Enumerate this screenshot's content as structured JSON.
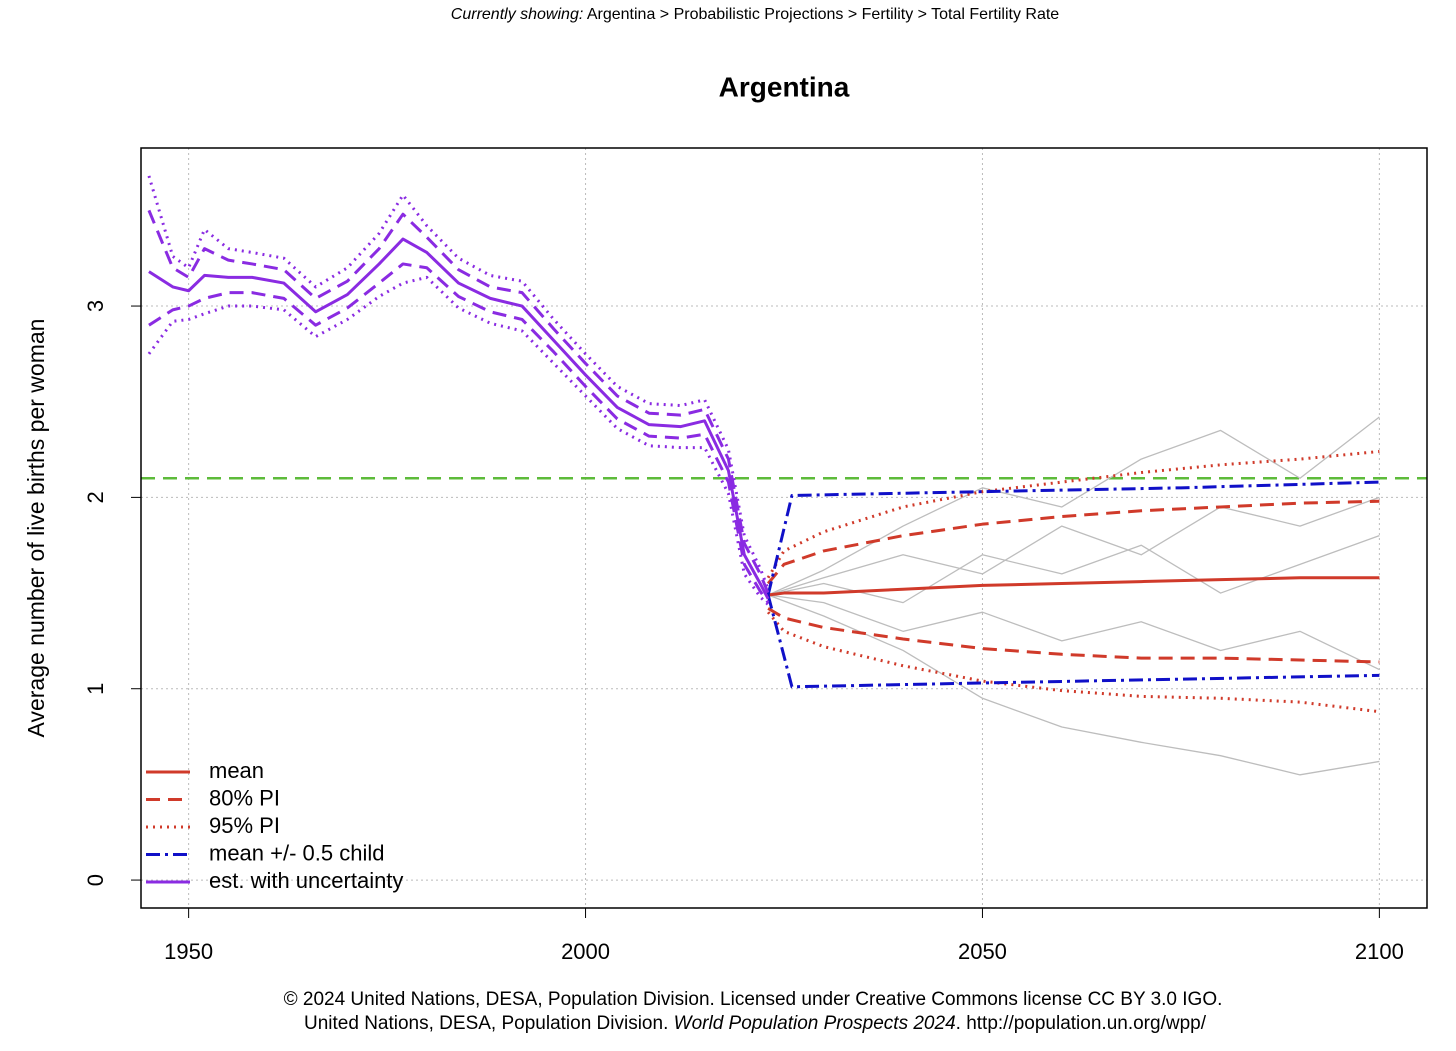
{
  "header": {
    "label": "Currently showing:",
    "path": "Argentina > Probabilistic Projections > Fertility > Total Fertility Rate"
  },
  "chart_data": {
    "type": "line",
    "title": "Argentina",
    "y_label": "Average number of live births per woman",
    "xlim": [
      1944,
      2106
    ],
    "ylim": [
      -0.146,
      3.826
    ],
    "xticks": [
      1950,
      2000,
      2050,
      2100
    ],
    "yticks": [
      0,
      1,
      2,
      3
    ],
    "grid": true,
    "legend": "bottomleft",
    "reference_line": {
      "value": 2.1,
      "color": "#5dbb3a",
      "dash": "dashed"
    },
    "series": [
      {
        "name": "mean",
        "color": "#d03a2a",
        "dash": "solid",
        "x": [
          2023,
          2025,
          2030,
          2040,
          2050,
          2060,
          2070,
          2080,
          2090,
          2100
        ],
        "values": [
          1.49,
          1.5,
          1.5,
          1.52,
          1.54,
          1.55,
          1.56,
          1.57,
          1.58,
          1.58
        ]
      },
      {
        "name": "80% PI",
        "color": "#d03a2a",
        "dash": "dashed",
        "x": [
          2023,
          2025,
          2030,
          2040,
          2050,
          2060,
          2070,
          2080,
          2090,
          2100
        ],
        "values": [
          1.55,
          1.65,
          1.72,
          1.8,
          1.86,
          1.9,
          1.93,
          1.95,
          1.97,
          1.98
        ]
      },
      {
        "color": "#d03a2a",
        "dash": "dashed",
        "x": [
          2023,
          2025,
          2030,
          2040,
          2050,
          2060,
          2070,
          2080,
          2090,
          2100
        ],
        "values": [
          1.42,
          1.37,
          1.32,
          1.26,
          1.21,
          1.18,
          1.16,
          1.16,
          1.15,
          1.14
        ]
      },
      {
        "name": "95% PI",
        "color": "#d03a2a",
        "dash": "dotted",
        "x": [
          2023,
          2025,
          2030,
          2040,
          2050,
          2060,
          2070,
          2080,
          2090,
          2100
        ],
        "values": [
          1.58,
          1.72,
          1.82,
          1.95,
          2.03,
          2.08,
          2.13,
          2.17,
          2.2,
          2.24
        ]
      },
      {
        "color": "#d03a2a",
        "dash": "dotted",
        "x": [
          2023,
          2025,
          2030,
          2040,
          2050,
          2060,
          2070,
          2080,
          2090,
          2100
        ],
        "values": [
          1.4,
          1.3,
          1.22,
          1.12,
          1.04,
          0.99,
          0.96,
          0.95,
          0.93,
          0.88
        ]
      },
      {
        "name": "mean +/- 0.5 child",
        "color": "#1010c8",
        "dash": "dotdash",
        "x": [
          2023,
          2026,
          2050,
          2075,
          2100
        ],
        "values": [
          1.49,
          2.01,
          2.03,
          2.05,
          2.08
        ]
      },
      {
        "color": "#1010c8",
        "dash": "dotdash",
        "x": [
          2023,
          2026,
          2050,
          2075,
          2100
        ],
        "values": [
          1.49,
          1.01,
          1.03,
          1.05,
          1.07
        ]
      },
      {
        "name": "est. with uncertainty",
        "color": "#8a2be2",
        "dash": "solid",
        "x": [
          1945,
          1948,
          1950,
          1952,
          1955,
          1958,
          1962,
          1966,
          1970,
          1974,
          1977,
          1980,
          1984,
          1988,
          1992,
          1996,
          2000,
          2004,
          2008,
          2012,
          2015,
          2018,
          2020,
          2022,
          2023
        ],
        "values": [
          3.18,
          3.1,
          3.08,
          3.16,
          3.15,
          3.15,
          3.12,
          2.97,
          3.06,
          3.22,
          3.35,
          3.28,
          3.12,
          3.04,
          3.0,
          2.82,
          2.64,
          2.47,
          2.38,
          2.37,
          2.4,
          2.14,
          1.7,
          1.55,
          1.47
        ]
      },
      {
        "color": "#8a2be2",
        "dash": "dashed",
        "x": [
          1945,
          1948,
          1950,
          1952,
          1955,
          1958,
          1962,
          1966,
          1970,
          1974,
          1977,
          1980,
          1984,
          1988,
          1992,
          1996,
          2000,
          2004,
          2008,
          2012,
          2015,
          2018,
          2020,
          2022,
          2023
        ],
        "values": [
          3.5,
          3.2,
          3.15,
          3.3,
          3.24,
          3.22,
          3.19,
          3.04,
          3.13,
          3.3,
          3.48,
          3.36,
          3.19,
          3.1,
          3.07,
          2.88,
          2.7,
          2.53,
          2.44,
          2.43,
          2.46,
          2.2,
          1.76,
          1.6,
          1.5
        ]
      },
      {
        "color": "#8a2be2",
        "dash": "dashed",
        "x": [
          1945,
          1948,
          1950,
          1952,
          1955,
          1958,
          1962,
          1966,
          1970,
          1974,
          1977,
          1980,
          1984,
          1988,
          1992,
          1996,
          2000,
          2004,
          2008,
          2012,
          2015,
          2018,
          2020,
          2022,
          2023
        ],
        "values": [
          2.9,
          2.98,
          3.0,
          3.04,
          3.07,
          3.07,
          3.04,
          2.9,
          2.99,
          3.12,
          3.22,
          3.2,
          3.05,
          2.97,
          2.93,
          2.76,
          2.58,
          2.41,
          2.32,
          2.31,
          2.33,
          2.08,
          1.65,
          1.51,
          1.45
        ]
      },
      {
        "color": "#8a2be2",
        "dash": "dotted",
        "x": [
          1945,
          1948,
          1950,
          1952,
          1955,
          1958,
          1962,
          1966,
          1970,
          1974,
          1977,
          1980,
          1984,
          1988,
          1992,
          1996,
          2000,
          2004,
          2008,
          2012,
          2015,
          2018,
          2020,
          2022,
          2023
        ],
        "values": [
          3.68,
          3.26,
          3.2,
          3.4,
          3.3,
          3.28,
          3.25,
          3.1,
          3.2,
          3.38,
          3.58,
          3.42,
          3.25,
          3.16,
          3.13,
          2.93,
          2.75,
          2.58,
          2.49,
          2.48,
          2.51,
          2.25,
          1.8,
          1.63,
          1.52
        ]
      },
      {
        "color": "#8a2be2",
        "dash": "dotted",
        "x": [
          1945,
          1948,
          1950,
          1952,
          1955,
          1958,
          1962,
          1966,
          1970,
          1974,
          1977,
          1980,
          1984,
          1988,
          1992,
          1996,
          2000,
          2004,
          2008,
          2012,
          2015,
          2018,
          2020,
          2022,
          2023
        ],
        "values": [
          2.75,
          2.92,
          2.93,
          2.96,
          3.0,
          3.0,
          2.98,
          2.84,
          2.93,
          3.05,
          3.12,
          3.15,
          2.99,
          2.91,
          2.87,
          2.7,
          2.53,
          2.36,
          2.27,
          2.26,
          2.26,
          2.02,
          1.6,
          1.48,
          1.44
        ]
      },
      {
        "color": "#bdbdbd",
        "dash": "thin",
        "x": [
          2023,
          2030,
          2040,
          2050,
          2060,
          2070,
          2080,
          2090,
          2100
        ],
        "values": [
          1.49,
          1.62,
          1.85,
          2.05,
          1.95,
          2.2,
          2.35,
          2.1,
          2.42
        ]
      },
      {
        "color": "#bdbdbd",
        "dash": "thin",
        "x": [
          2023,
          2030,
          2040,
          2050,
          2060,
          2070,
          2080,
          2090,
          2100
        ],
        "values": [
          1.49,
          1.38,
          1.2,
          0.95,
          0.8,
          0.72,
          0.65,
          0.55,
          0.62
        ]
      },
      {
        "color": "#bdbdbd",
        "dash": "thin",
        "x": [
          2023,
          2030,
          2040,
          2050,
          2060,
          2070,
          2080,
          2090,
          2100
        ],
        "values": [
          1.49,
          1.55,
          1.45,
          1.7,
          1.6,
          1.75,
          1.5,
          1.65,
          1.8
        ]
      },
      {
        "color": "#bdbdbd",
        "dash": "thin",
        "x": [
          2023,
          2030,
          2040,
          2050,
          2060,
          2070,
          2080,
          2090,
          2100
        ],
        "values": [
          1.49,
          1.45,
          1.3,
          1.4,
          1.25,
          1.35,
          1.2,
          1.3,
          1.1
        ]
      },
      {
        "color": "#bdbdbd",
        "dash": "thin",
        "x": [
          2023,
          2030,
          2040,
          2050,
          2060,
          2070,
          2080,
          2090,
          2100
        ],
        "values": [
          1.49,
          1.58,
          1.7,
          1.6,
          1.85,
          1.7,
          1.95,
          1.85,
          2.0
        ]
      }
    ]
  },
  "footer": {
    "line1": "© 2024 United Nations, DESA, Population Division. Licensed under Creative Commons license CC BY 3.0 IGO.",
    "line2_start": "United Nations, DESA, Population Division.",
    "line2_italic": "World Population Prospects 2024",
    "line2_end": ". http://population.un.org/wpp/"
  }
}
